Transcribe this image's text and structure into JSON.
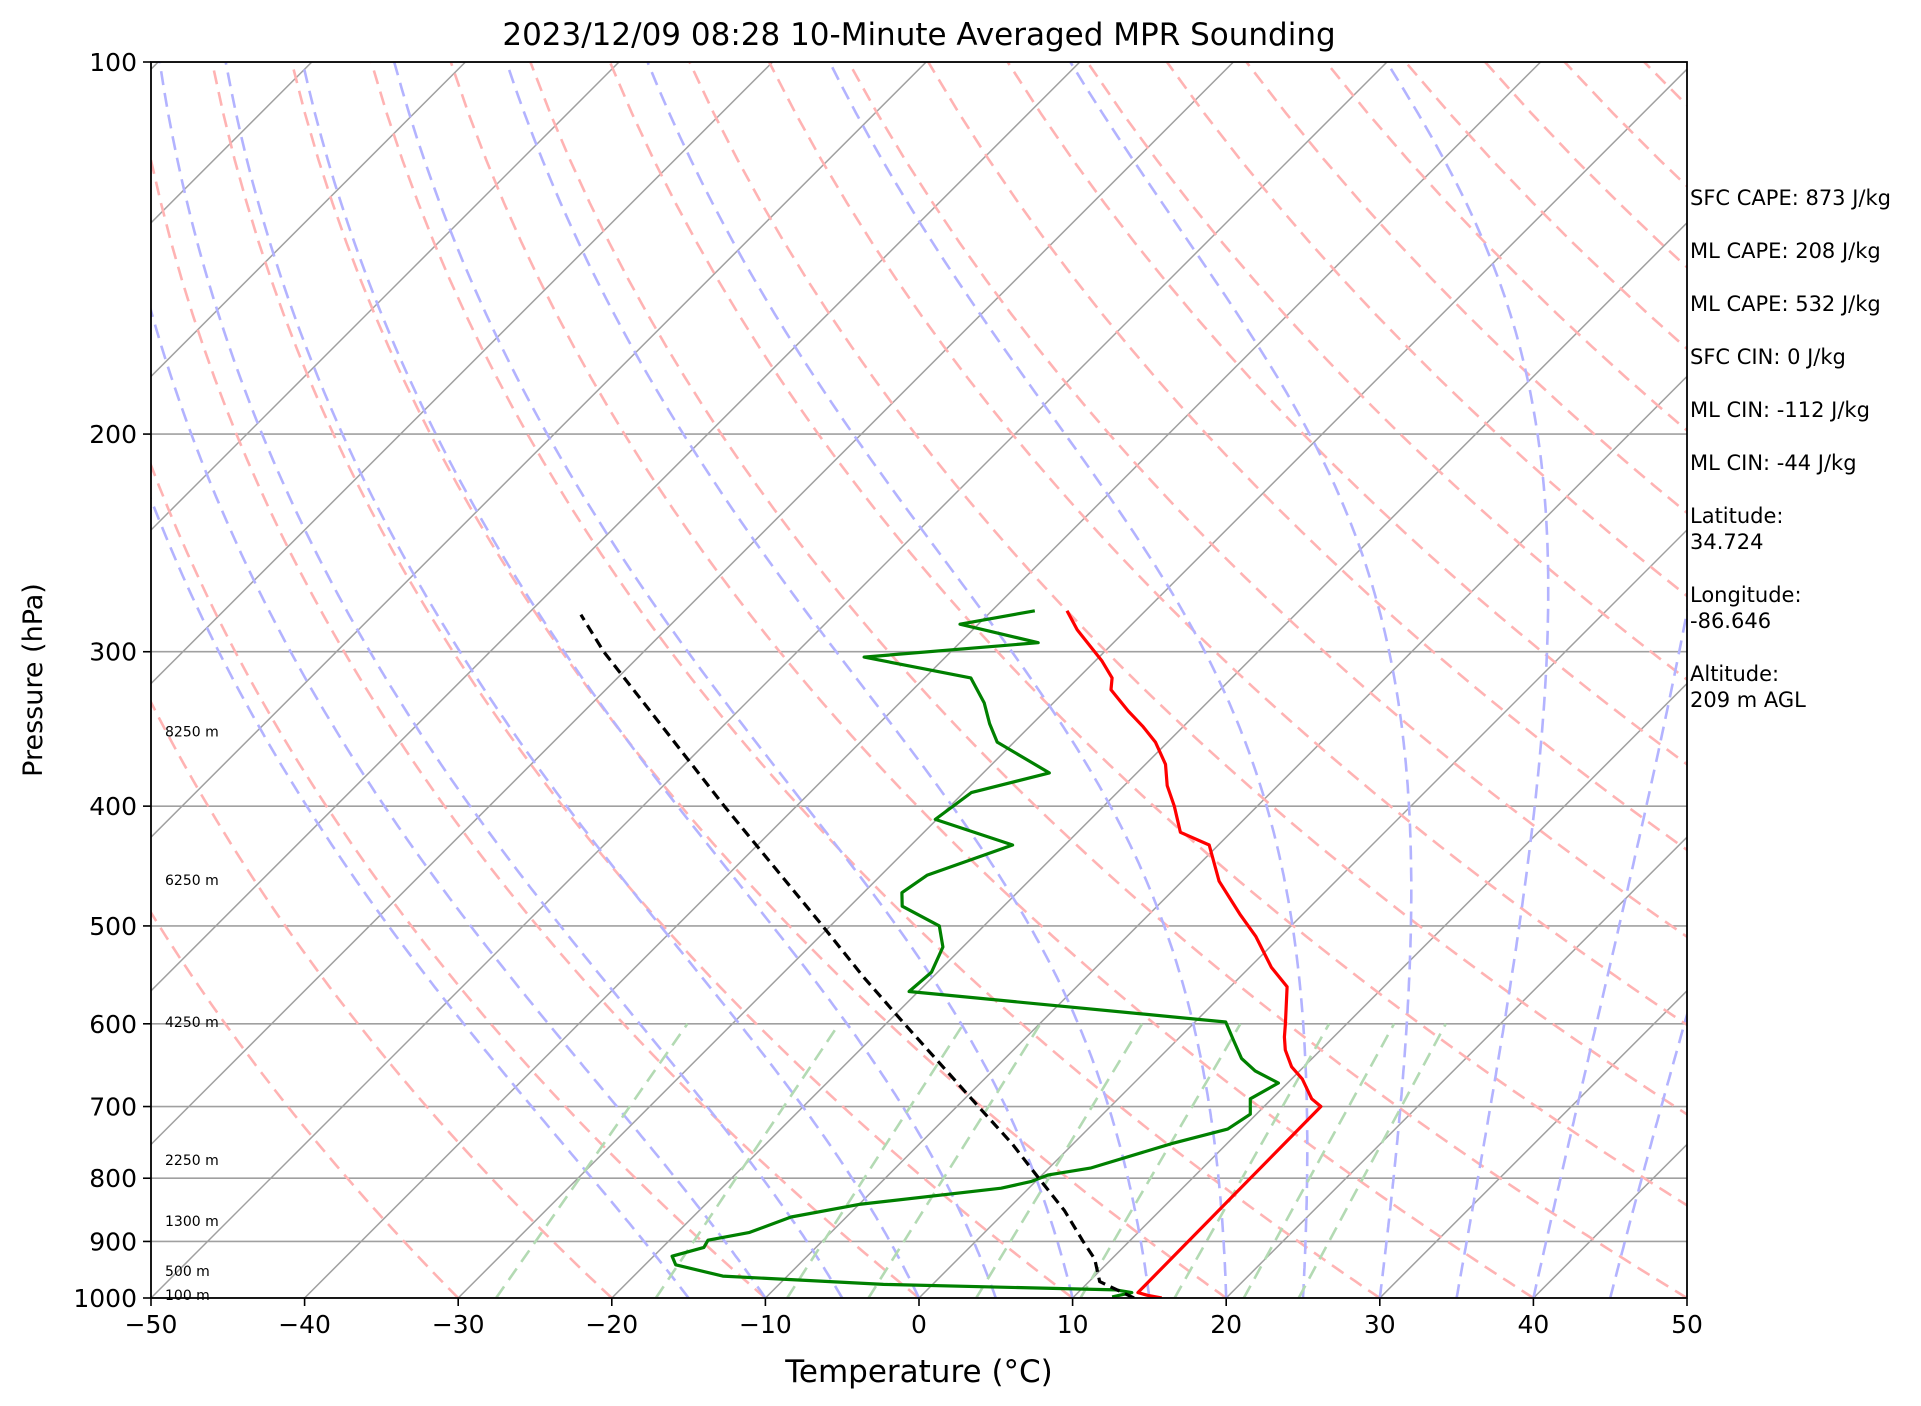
{
  "chart_data": {
    "type": "line",
    "title": "2023/12/09 08:28 10-Minute Averaged MPR Sounding",
    "xlabel": "Temperature (°C)",
    "ylabel": "Pressure (hPa)",
    "xlim": [
      -50,
      50
    ],
    "ylim": [
      1000,
      100
    ],
    "y_scale": "log",
    "x_ticks": [
      "−50",
      "−40",
      "−30",
      "−20",
      "−10",
      "0",
      "10",
      "20",
      "30",
      "40",
      "50"
    ],
    "x_tick_values": [
      -50,
      -40,
      -30,
      -20,
      -10,
      0,
      10,
      20,
      30,
      40,
      50
    ],
    "y_ticks": [
      "1000",
      "900",
      "800",
      "700",
      "600",
      "500",
      "400",
      "300",
      "200",
      "100"
    ],
    "y_tick_values": [
      1000,
      900,
      800,
      700,
      600,
      500,
      400,
      300,
      200,
      100
    ],
    "height_labels": [
      {
        "label": "100 m",
        "p": 994
      },
      {
        "label": "500 m",
        "p": 951
      },
      {
        "label": "1300 m",
        "p": 866
      },
      {
        "label": "2250 m",
        "p": 773
      },
      {
        "label": "4250 m",
        "p": 598
      },
      {
        "label": "6250 m",
        "p": 459
      },
      {
        "label": "8250 m",
        "p": 348
      }
    ],
    "series": [
      {
        "name": "",
        "color": "#ff0000",
        "points": [
          [
            1000,
            15.8
          ],
          [
            995,
            14.7
          ],
          [
            990,
            13.9
          ],
          [
            700,
            13.7
          ],
          [
            690,
            12.6
          ],
          [
            665,
            10.7
          ],
          [
            650,
            9.2
          ],
          [
            630,
            7.7
          ],
          [
            615,
            6.8
          ],
          [
            600,
            6.0
          ],
          [
            560,
            3.7
          ],
          [
            540,
            1.4
          ],
          [
            510,
            -1.6
          ],
          [
            490,
            -4.0
          ],
          [
            460,
            -7.6
          ],
          [
            430,
            -10.6
          ],
          [
            420,
            -13.3
          ],
          [
            400,
            -15.4
          ],
          [
            385,
            -17.2
          ],
          [
            370,
            -18.7
          ],
          [
            355,
            -20.8
          ],
          [
            345,
            -22.6
          ],
          [
            335,
            -24.6
          ],
          [
            322,
            -27.1
          ],
          [
            315,
            -27.8
          ],
          [
            305,
            -29.6
          ],
          [
            288,
            -33.2
          ],
          [
            278,
            -35.1
          ]
        ]
      },
      {
        "name": "",
        "color": "#008000",
        "points": [
          [
            998,
            12.5
          ],
          [
            990,
            13.5
          ],
          [
            985,
            12.3
          ],
          [
            975,
            -3.2
          ],
          [
            960,
            -14.2
          ],
          [
            940,
            -18.0
          ],
          [
            925,
            -18.8
          ],
          [
            910,
            -17.3
          ],
          [
            898,
            -17.5
          ],
          [
            885,
            -15.3
          ],
          [
            860,
            -13.6
          ],
          [
            840,
            -10.0
          ],
          [
            815,
            -1.8
          ],
          [
            805,
            -0.3
          ],
          [
            795,
            0.4
          ],
          [
            785,
            2.7
          ],
          [
            750,
            6.4
          ],
          [
            730,
            9.1
          ],
          [
            710,
            9.6
          ],
          [
            690,
            8.6
          ],
          [
            670,
            9.4
          ],
          [
            655,
            7.1
          ],
          [
            640,
            5.4
          ],
          [
            620,
            3.8
          ],
          [
            598,
            2.0
          ],
          [
            565,
            -20.6
          ],
          [
            545,
            -20.4
          ],
          [
            520,
            -21.3
          ],
          [
            500,
            -22.9
          ],
          [
            482,
            -26.6
          ],
          [
            470,
            -27.5
          ],
          [
            455,
            -27.0
          ],
          [
            430,
            -23.4
          ],
          [
            410,
            -30.1
          ],
          [
            390,
            -29.5
          ],
          [
            376,
            -25.7
          ],
          [
            355,
            -31.1
          ],
          [
            343,
            -32.8
          ],
          [
            330,
            -34.5
          ],
          [
            315,
            -37.0
          ],
          [
            303,
            -45.3
          ],
          [
            295,
            -34.9
          ],
          [
            285,
            -41.2
          ],
          [
            278,
            -37.2
          ]
        ]
      },
      {
        "name": "",
        "color": "#000000",
        "style": "dashed",
        "points": [
          [
            1000,
            14.0
          ],
          [
            970,
            10.7
          ],
          [
            930,
            8.9
          ],
          [
            900,
            7.0
          ],
          [
            850,
            3.8
          ],
          [
            800,
            0.0
          ],
          [
            750,
            -4.0
          ],
          [
            700,
            -8.6
          ],
          [
            650,
            -13.5
          ],
          [
            600,
            -18.8
          ],
          [
            550,
            -24.5
          ],
          [
            500,
            -30.5
          ],
          [
            450,
            -37.2
          ],
          [
            400,
            -44.7
          ],
          [
            350,
            -53.0
          ],
          [
            300,
            -62.6
          ],
          [
            280,
            -66.5
          ]
        ]
      }
    ],
    "grid": true
  },
  "info": {
    "sfc_cape": "SFC CAPE: 873 J/kg",
    "ml_cape_1": "ML CAPE: 208 J/kg",
    "ml_cape_2": "ML CAPE: 532 J/kg",
    "sfc_cin": "SFC CIN: 0 J/kg",
    "ml_cin_1": "ML CIN: -112 J/kg",
    "ml_cin_2": "ML CIN: -44 J/kg",
    "latitude_label": "Latitude:",
    "latitude_value": "34.724",
    "longitude_label": "Longitude:",
    "longitude_value": "-86.646",
    "altitude_label": "Altitude:",
    "altitude_value": "209 m AGL"
  },
  "colors": {
    "isotherm": "#a0a0a0",
    "dry_adiabat": "#ffb3b3",
    "moist_adiabat": "#b3b3ff",
    "mixing_ratio": "#b3dab3"
  }
}
